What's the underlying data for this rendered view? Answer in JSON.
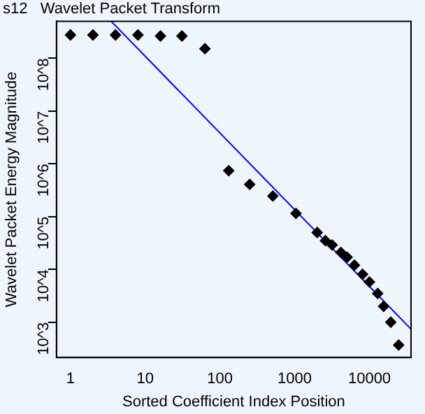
{
  "chart_data": {
    "type": "scatter",
    "title": "s12   Wavelet Packet Transform",
    "xlabel": "Sorted Coefficient Index Position",
    "ylabel": "Wavelet Packet Energy Magnitude",
    "log": "xy",
    "grid": false,
    "legend": false,
    "xlim": [
      0.65,
      36000
    ],
    "ylim": [
      215,
      500000000
    ],
    "xticks": [
      1,
      10,
      100,
      1000,
      10000
    ],
    "yticks": [
      {
        "value": 1000,
        "label": "10^3"
      },
      {
        "value": 10000,
        "label": "10^4"
      },
      {
        "value": 100000,
        "label": "10^5"
      },
      {
        "value": 1000000,
        "label": "10^6"
      },
      {
        "value": 10000000,
        "label": "10^7"
      },
      {
        "value": 100000000,
        "label": "10^8"
      }
    ],
    "series": [
      {
        "marker": "diamond",
        "color": "#000000",
        "x": [
          1,
          2,
          4,
          8,
          16,
          31,
          63,
          131,
          250,
          510,
          1040,
          2000,
          2580,
          3170,
          4150,
          5030,
          6300,
          8100,
          10000,
          12900,
          15500,
          19300,
          24600
        ],
        "values": [
          275000000,
          275000000,
          275000000,
          275000000,
          263000000,
          263000000,
          151000000,
          741000,
          407000,
          245000,
          115000,
          50000,
          35000,
          29000,
          21000,
          17000,
          12000,
          8100,
          5800,
          3500,
          2000,
          1000,
          370
        ]
      },
      {
        "type": "line",
        "marker": "none",
        "line_style": "solid",
        "color": "#0000ff",
        "x": [
          3.5,
          36000
        ],
        "values": [
          500000000,
          741
        ]
      }
    ]
  }
}
